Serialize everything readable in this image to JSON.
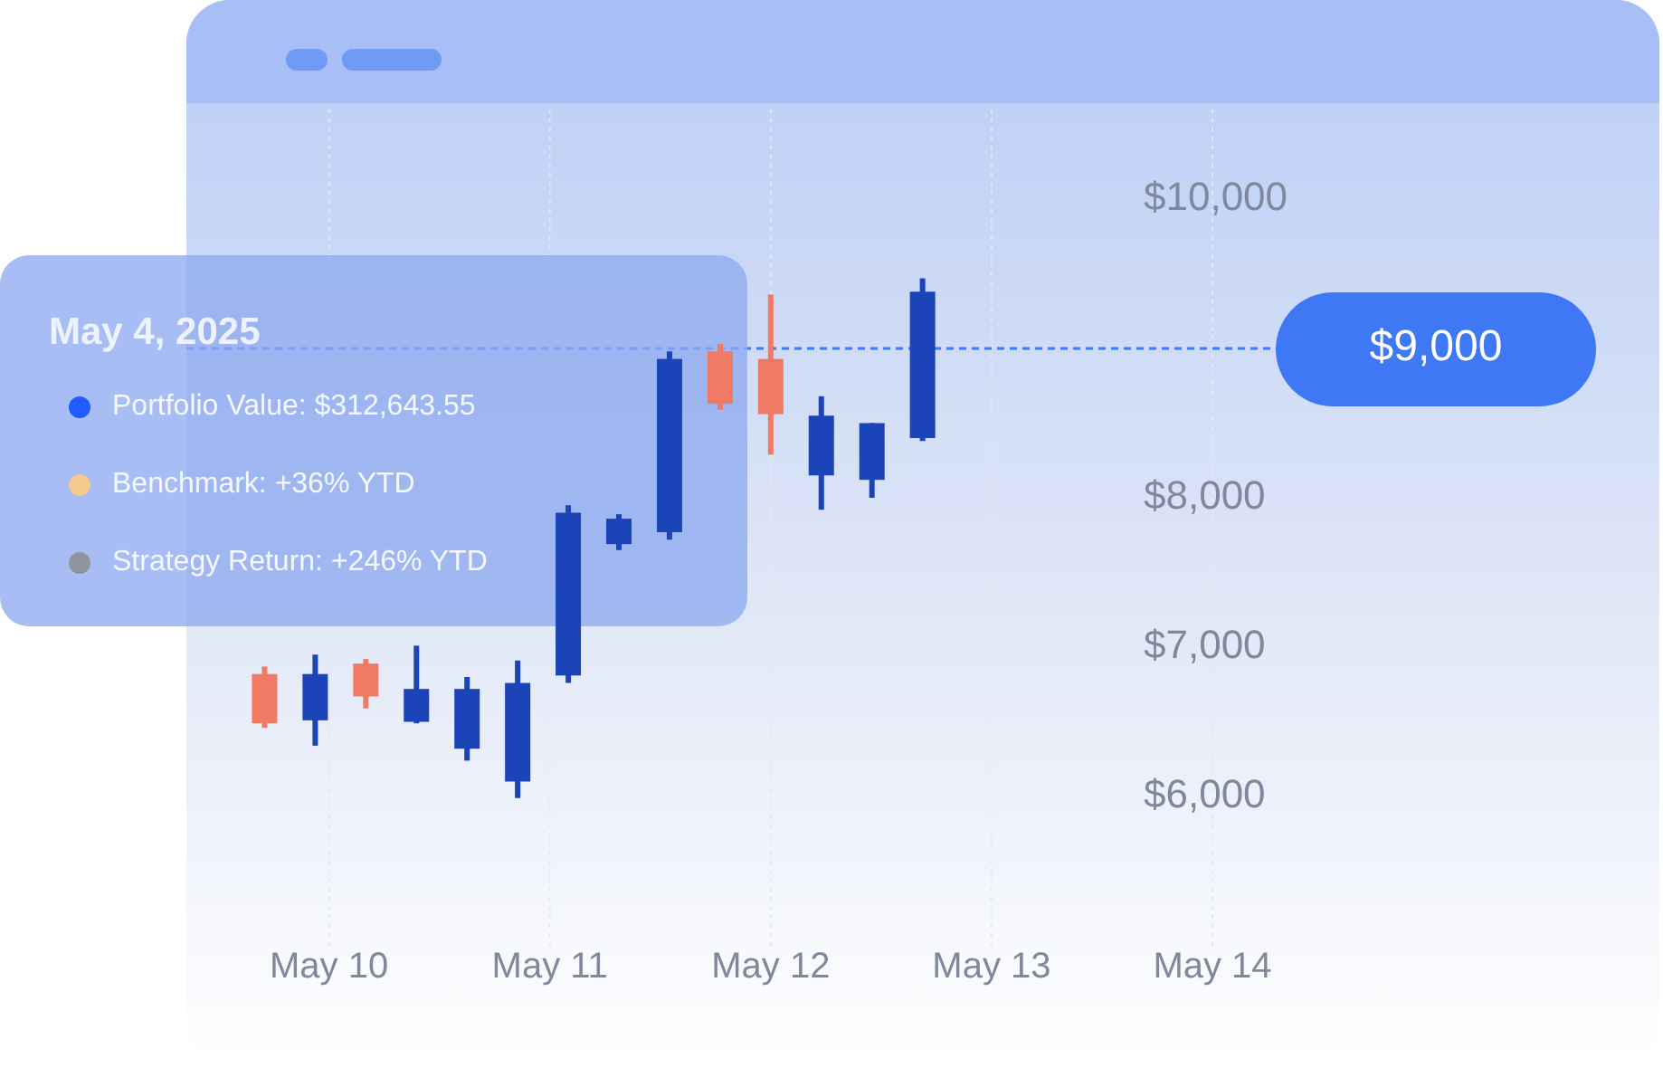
{
  "chart_data": {
    "type": "candlestick",
    "x": [
      "2025-05-09T17:00",
      "2025-05-09T22:30",
      "2025-05-10T04:00",
      "2025-05-10T09:30",
      "2025-05-10T15:00",
      "2025-05-10T20:30",
      "2025-05-11T02:00",
      "2025-05-11T07:30",
      "2025-05-11T13:00",
      "2025-05-11T18:30",
      "2025-05-12T00:00",
      "2025-05-12T05:30",
      "2025-05-12T11:00",
      "2025-05-12T16:30"
    ],
    "ohlc": [
      [
        6820,
        6870,
        6460,
        6490
      ],
      [
        6510,
        6950,
        6340,
        6820
      ],
      [
        6890,
        6920,
        6590,
        6670
      ],
      [
        6500,
        7010,
        6490,
        6720
      ],
      [
        6320,
        6800,
        6240,
        6720
      ],
      [
        6100,
        6910,
        5990,
        6760
      ],
      [
        6810,
        7950,
        6760,
        7900
      ],
      [
        7690,
        7890,
        7650,
        7860
      ],
      [
        7770,
        8980,
        7720,
        8930
      ],
      [
        8980,
        9030,
        8590,
        8630
      ],
      [
        8930,
        9360,
        8290,
        8560
      ],
      [
        8150,
        8680,
        7920,
        8550
      ],
      [
        8120,
        8500,
        8000,
        8500
      ],
      [
        8400,
        9470,
        8380,
        9380
      ]
    ],
    "colors": [
      "#f07a64",
      "#1a44b8",
      "#f07a64",
      "#1a44b8",
      "#1a44b8",
      "#1a44b8",
      "#1a44b8",
      "#1a44b8",
      "#1a44b8",
      "#f07a64",
      "#f07a64",
      "#1a44b8",
      "#1a44b8",
      "#1a44b8"
    ],
    "xlim": [
      "2025-05-09T08:30",
      "2025-05-14T00:00"
    ],
    "xticks": [
      {
        "value": "2025-05-10T00:00",
        "label": "May 10"
      },
      {
        "value": "2025-05-11T00:00",
        "label": "May 11"
      },
      {
        "value": "2025-05-12T00:00",
        "label": "May 12"
      },
      {
        "value": "2025-05-13T00:00",
        "label": "May 13"
      },
      {
        "value": "2025-05-14T00:00",
        "label": "May 14"
      }
    ],
    "ylim": [
      5000,
      10600
    ],
    "yticks": [
      {
        "value": 6000,
        "label": "$6,000"
      },
      {
        "value": 7000,
        "label": "$7,000"
      },
      {
        "value": 8000,
        "label": "$8,000"
      },
      {
        "value": 10000,
        "label": "$10,000"
      }
    ],
    "grid": "x",
    "ref_lines": [
      {
        "axis": "y",
        "value": 9000,
        "label": "$9,000",
        "color": "#3f78f5",
        "line_style": "dashed"
      }
    ],
    "annotations": [
      "May 4, 2025",
      "Portfolio Value: $312,643.55",
      "Benchmark: +36% YTD",
      "Strategy Return: +246% YTD"
    ]
  }
}
